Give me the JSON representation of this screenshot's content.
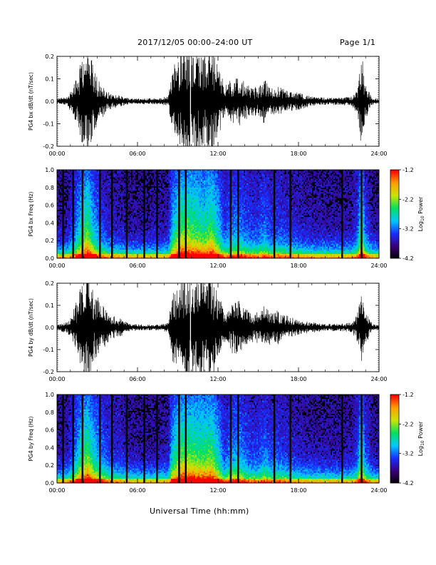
{
  "header": {
    "date_range": "2017/12/05  00:00–24:00 UT",
    "page": "Page 1/1"
  },
  "footer": {
    "xlabel": "Universal Time (hh:mm)"
  },
  "colors": {
    "trace": "#000000",
    "spectrogram_bg": "#000000",
    "colormap": [
      "#000000",
      "#3a007a",
      "#1a2cff",
      "#00c8ff",
      "#00e060",
      "#c8e600",
      "#ffa000",
      "#ff0000"
    ]
  },
  "chart_data": [
    {
      "type": "line",
      "ylabel": "PG4 bx dB/dt (nT/sec)",
      "xticks": [
        "00:00",
        "06:00",
        "12:00",
        "18:00",
        "24:00"
      ],
      "yticks": [
        "-0.2",
        "-0.1",
        "0.0",
        "0.1",
        "0.2"
      ],
      "xlim": [
        0,
        24
      ],
      "ylim": [
        -0.2,
        0.2
      ],
      "envelope": {
        "x_hours": [
          0,
          0.8,
          1.3,
          1.8,
          2.3,
          2.8,
          3.3,
          3.8,
          4.5,
          5.5,
          6.5,
          7.5,
          8.3,
          8.6,
          9.2,
          9.8,
          10.5,
          11.0,
          11.5,
          12.0,
          12.5,
          13.0,
          13.5,
          14.0,
          14.5,
          15.0,
          15.5,
          16.0,
          16.5,
          17.0,
          17.5,
          18.0,
          19.0,
          20.0,
          21.0,
          22.0,
          22.4,
          22.7,
          23.0,
          23.5,
          24.0
        ],
        "amplitude": [
          0.012,
          0.02,
          0.07,
          0.16,
          0.22,
          0.12,
          0.07,
          0.035,
          0.025,
          0.01,
          0.012,
          0.012,
          0.02,
          0.13,
          0.22,
          0.22,
          0.2,
          0.18,
          0.22,
          0.15,
          0.06,
          0.09,
          0.1,
          0.08,
          0.06,
          0.06,
          0.09,
          0.05,
          0.06,
          0.05,
          0.04,
          0.035,
          0.02,
          0.015,
          0.015,
          0.02,
          0.06,
          0.2,
          0.07,
          0.015,
          0.01
        ]
      }
    },
    {
      "type": "heatmap",
      "ylabel": "PG4 bx Freq (Hz)",
      "xticks": [
        "00:00",
        "06:00",
        "12:00",
        "18:00",
        "24:00"
      ],
      "yticks": [
        "0.0",
        "0.2",
        "0.4",
        "0.6",
        "0.8",
        "1.0"
      ],
      "xlim": [
        0,
        24
      ],
      "ylim": [
        0,
        1.0
      ],
      "colorbar": {
        "label": "Log10 Power",
        "label_main": "Log",
        "label_sub": "10",
        "label_end": " Power",
        "ticks": [
          "-1.2",
          "-2.2",
          "-3.2",
          "-4.2"
        ],
        "range": [
          -4.2,
          -1.2
        ]
      },
      "gaps_hours": [
        0.45,
        1.2,
        1.9,
        3.2,
        4.1,
        5.2,
        6.5,
        7.45,
        9.1,
        9.6,
        12.95,
        13.5,
        16.2,
        17.4,
        21.25,
        22.7
      ]
    },
    {
      "type": "line",
      "ylabel": "PG4 by dB/dt (nT/sec)",
      "xticks": [
        "00:00",
        "06:00",
        "12:00",
        "18:00",
        "24:00"
      ],
      "yticks": [
        "-0.2",
        "-0.1",
        "0.0",
        "0.1",
        "0.2"
      ],
      "xlim": [
        0,
        24
      ],
      "ylim": [
        -0.2,
        0.2
      ],
      "envelope": {
        "x_hours": [
          0,
          0.8,
          1.3,
          1.8,
          2.3,
          2.8,
          3.3,
          3.8,
          4.5,
          5.5,
          6.5,
          7.5,
          8.3,
          8.6,
          9.2,
          9.8,
          10.5,
          11.0,
          11.5,
          12.0,
          12.5,
          13.0,
          13.5,
          14.0,
          14.5,
          15.0,
          15.5,
          16.0,
          16.5,
          17.0,
          17.5,
          18.0,
          19.0,
          20.0,
          21.0,
          22.0,
          22.4,
          22.7,
          23.0,
          23.5,
          24.0
        ],
        "amplitude": [
          0.012,
          0.025,
          0.08,
          0.17,
          0.22,
          0.14,
          0.1,
          0.06,
          0.04,
          0.015,
          0.012,
          0.012,
          0.02,
          0.14,
          0.22,
          0.22,
          0.21,
          0.2,
          0.22,
          0.15,
          0.06,
          0.1,
          0.12,
          0.08,
          0.06,
          0.06,
          0.09,
          0.06,
          0.07,
          0.05,
          0.04,
          0.03,
          0.02,
          0.015,
          0.015,
          0.02,
          0.06,
          0.18,
          0.07,
          0.015,
          0.01
        ]
      }
    },
    {
      "type": "heatmap",
      "ylabel": "PG4 by Freq (Hz)",
      "xticks": [
        "00:00",
        "06:00",
        "12:00",
        "18:00",
        "24:00"
      ],
      "yticks": [
        "0.0",
        "0.2",
        "0.4",
        "0.6",
        "0.8",
        "1.0"
      ],
      "xlim": [
        0,
        24
      ],
      "ylim": [
        0,
        1.0
      ],
      "colorbar": {
        "label": "Log10 Power",
        "label_main": "Log",
        "label_sub": "10",
        "label_end": " Power",
        "ticks": [
          "-1.2",
          "-2.2",
          "-3.2",
          "-4.2"
        ],
        "range": [
          -4.2,
          -1.2
        ]
      },
      "gaps_hours": [
        0.45,
        1.2,
        1.9,
        3.2,
        4.1,
        5.2,
        6.5,
        7.45,
        9.1,
        9.6,
        12.95,
        13.5,
        16.2,
        17.4,
        21.25,
        22.7
      ]
    }
  ]
}
